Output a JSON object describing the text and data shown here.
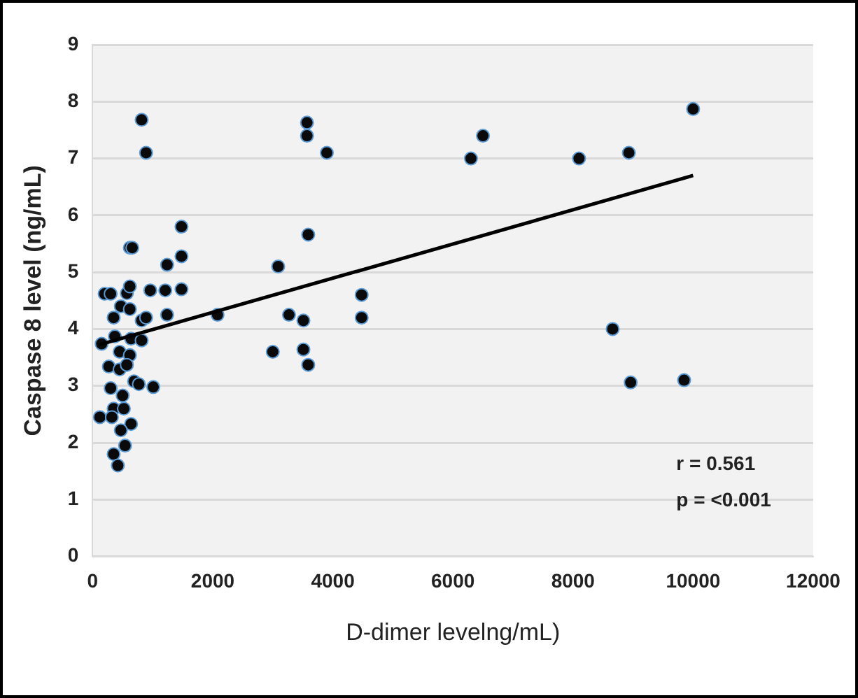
{
  "chart_data": {
    "type": "scatter",
    "xlabel": "D-dimer levelng/mL)",
    "ylabel": "Caspase 8 level (ng/mL)",
    "xlim": [
      0,
      12000
    ],
    "xticks": [
      0,
      2000,
      4000,
      6000,
      8000,
      10000,
      12000
    ],
    "ylim": [
      0,
      9
    ],
    "yticks": [
      0,
      1,
      2,
      3,
      4,
      5,
      6,
      7,
      8,
      9
    ],
    "grid": "y",
    "legend": false,
    "marker": "circle",
    "annotations": [
      "r = 0.561",
      "p = <0.001"
    ],
    "series": [
      {
        "color": "#0a0a0a",
        "x": [
          816,
          890,
          3570,
          3570,
          3900,
          6300,
          6500,
          8100,
          8930,
          10000,
          1480,
          1480,
          1240,
          3590,
          3090,
          620,
          660,
          200,
          300,
          570,
          620,
          960,
          1210,
          1480,
          470,
          620,
          350,
          816,
          890,
          1240,
          2080,
          3270,
          3510,
          3510,
          3590,
          3000,
          4480,
          4480,
          8660,
          8960,
          9850,
          150,
          370,
          640,
          816,
          450,
          620,
          270,
          450,
          570,
          690,
          770,
          1010,
          300,
          500,
          350,
          520,
          120,
          320,
          640,
          470,
          540,
          350,
          420
        ],
        "values": [
          7.68,
          7.1,
          7.63,
          7.4,
          7.1,
          7.0,
          7.4,
          7.0,
          7.1,
          7.87,
          5.8,
          5.28,
          5.13,
          5.66,
          5.1,
          5.43,
          5.43,
          4.62,
          4.62,
          4.63,
          4.75,
          4.68,
          4.68,
          4.7,
          4.4,
          4.35,
          4.2,
          4.15,
          4.2,
          4.25,
          4.25,
          4.25,
          4.15,
          3.64,
          3.37,
          3.6,
          4.6,
          4.2,
          4.0,
          3.06,
          3.1,
          3.74,
          3.87,
          3.83,
          3.8,
          3.6,
          3.54,
          3.34,
          3.29,
          3.37,
          3.08,
          3.03,
          2.98,
          2.96,
          2.83,
          2.6,
          2.6,
          2.45,
          2.45,
          2.33,
          2.22,
          1.95,
          1.8,
          1.6
        ]
      },
      {
        "type": "line",
        "marker": "none",
        "color": "#000000",
        "x": [
          100,
          10000
        ],
        "values": [
          3.72,
          6.7
        ]
      }
    ]
  }
}
